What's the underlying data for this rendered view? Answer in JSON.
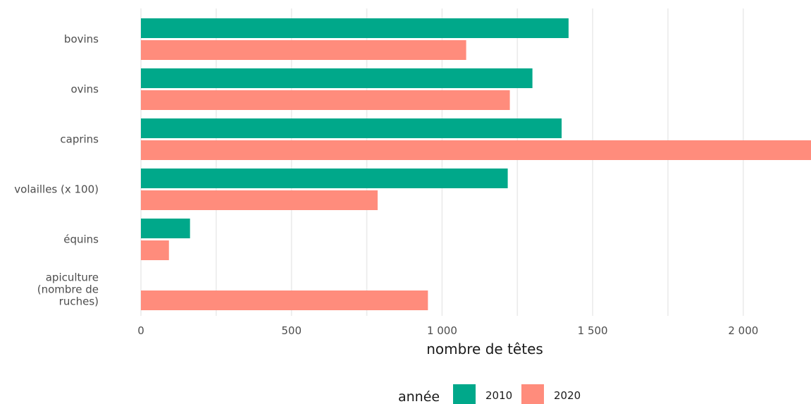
{
  "chart_data": {
    "type": "bar",
    "orientation": "horizontal",
    "categories": [
      "bovins",
      "ovins",
      "caprins",
      "volailles (x 100)",
      "équins",
      "apiculture (nombre de ruches)"
    ],
    "category_label_lines": [
      [
        "bovins"
      ],
      [
        "ovins"
      ],
      [
        "caprins"
      ],
      [
        "volailles (x 100)"
      ],
      [
        "équins"
      ],
      [
        "apiculture",
        "(nombre de",
        "ruches)"
      ]
    ],
    "series": [
      {
        "name": "2010",
        "color": "#00a88a",
        "values": [
          1420,
          1300,
          1397,
          1218,
          163,
          null
        ]
      },
      {
        "name": "2020",
        "color": "#ff8c7c",
        "values": [
          1080,
          1225,
          2230,
          786,
          93,
          953
        ]
      }
    ],
    "xlim": [
      0,
      2225
    ],
    "xticks": [
      0,
      500,
      1000,
      1500,
      2000
    ],
    "xtick_labels": [
      "0",
      "500",
      "1 000",
      "1 500",
      "2 000"
    ],
    "minor_xticks": [
      250,
      750,
      1250,
      1750
    ],
    "xlabel": "nombre de têtes",
    "ylabel": "",
    "grid": true,
    "legend": {
      "title": "année",
      "position": "bottom"
    }
  }
}
